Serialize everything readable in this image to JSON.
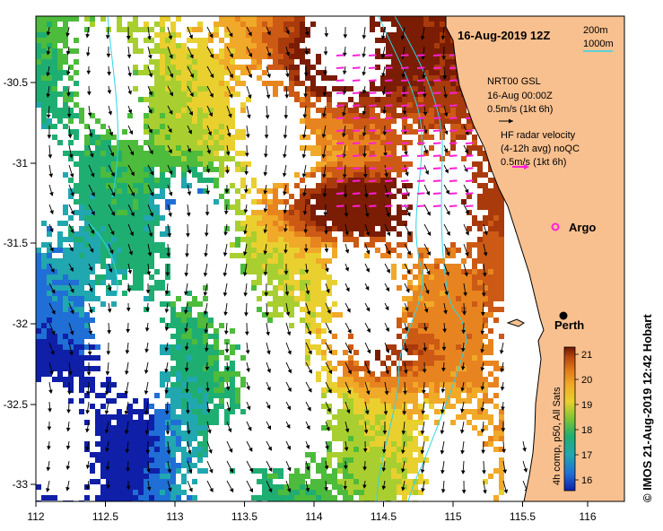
{
  "title": "16-Aug-2019 12Z",
  "depth_legend": {
    "line1": "200m",
    "line2": "1000m"
  },
  "model_legend": {
    "line1": "NRT00 GSL",
    "line2": "16-Aug 00:00Z",
    "scale": "0.5m/s (1kt 6h)"
  },
  "radar_legend": {
    "line1": "HF radar velocity",
    "line2": "(4-12h avg) noQC",
    "scale": "0.5m/s (1kt 6h)"
  },
  "places": {
    "argo": "Argo",
    "perth": "Perth"
  },
  "colorbar": {
    "label": "4h comp, p50, All Sats",
    "ticks": [
      "21",
      "20",
      "19",
      "18",
      "17",
      "16"
    ],
    "colors": [
      "#7b1c05",
      "#a83a0c",
      "#cc5a14",
      "#e8841f",
      "#f0a928",
      "#e9d02f",
      "#a8cf2f",
      "#4dbb3b",
      "#1fae72",
      "#21a7b0",
      "#1f6fd6",
      "#0f1fa8"
    ]
  },
  "x_ticks": [
    "112",
    "112.5",
    "113",
    "113.5",
    "114",
    "114.5",
    "115",
    "115.5",
    "116"
  ],
  "y_ticks": [
    "-30.5",
    "-31",
    "-31.5",
    "-32",
    "-32.5",
    "-33"
  ],
  "credit": "© IMOS 21-Aug-2019 12:42 Hobart",
  "colors": {
    "land": "#f9c08f",
    "bathy": "#2bd6e8",
    "radar": "#ff1fd8",
    "model": "#000000"
  }
}
